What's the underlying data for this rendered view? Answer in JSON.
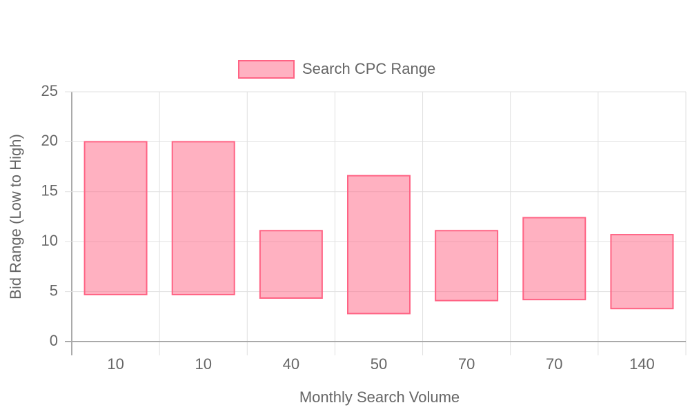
{
  "chart_data": {
    "type": "floating-bar",
    "x_label": "Monthly Search Volume",
    "y_label": "Bid Range (Low to High)",
    "categories": [
      "10",
      "10",
      "40",
      "50",
      "70",
      "70",
      "140"
    ],
    "series": [
      {
        "name": "Search CPC Range",
        "color": "#ff6384",
        "fill": "rgba(255,99,132,0.5)",
        "values": [
          [
            4.7,
            20
          ],
          [
            4.7,
            20
          ],
          [
            4.35,
            11.1
          ],
          [
            2.8,
            16.6
          ],
          [
            4.1,
            11.1
          ],
          [
            4.2,
            12.4
          ],
          [
            3.3,
            10.7
          ]
        ]
      }
    ],
    "ylim": [
      0,
      25
    ],
    "yticks": [
      0,
      5,
      10,
      15,
      20,
      25
    ],
    "grid": true,
    "legend": "top"
  }
}
